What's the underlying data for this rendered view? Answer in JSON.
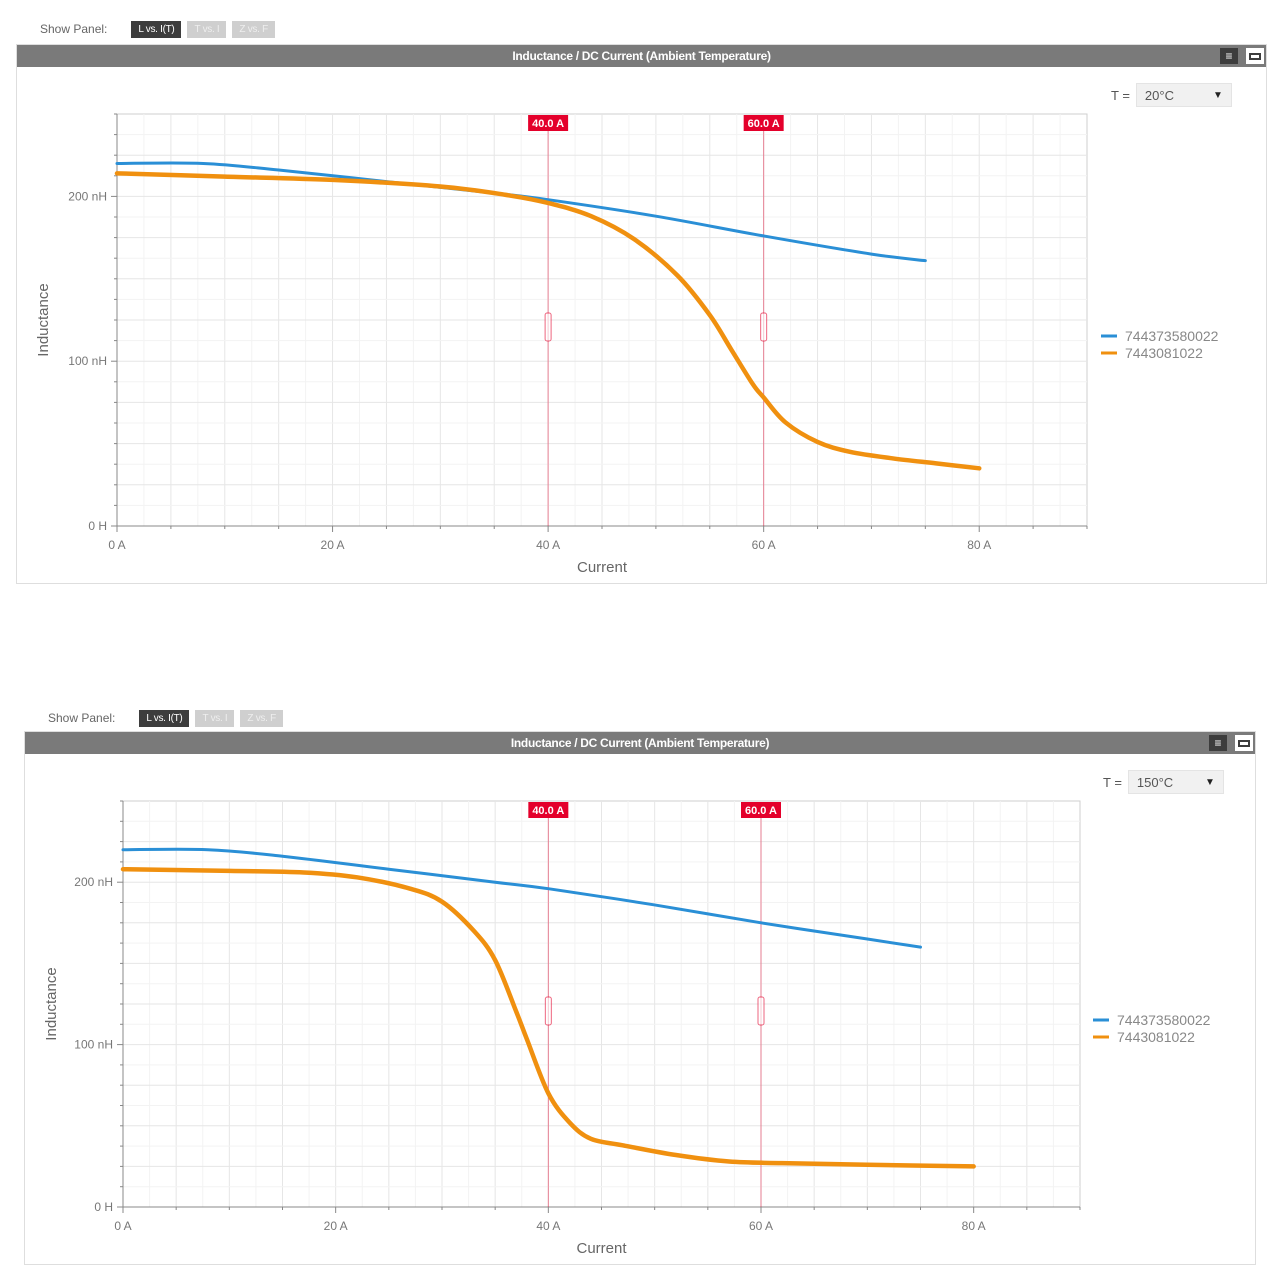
{
  "panels": [
    {
      "show_panel_label": "Show Panel:",
      "tabs": [
        {
          "label": "L vs. I(T)",
          "active": true
        },
        {
          "label": "T vs. I",
          "active": false
        },
        {
          "label": "Z vs. F",
          "active": false
        }
      ],
      "title": "Inductance / DC Current (Ambient Temperature)",
      "menu_icon": "hamburger-icon",
      "maximize_icon": "maximize-icon",
      "temperature_label": "T =",
      "temperature_value": "20°C"
    },
    {
      "show_panel_label": "Show Panel:",
      "tabs": [
        {
          "label": "L vs. I(T)",
          "active": true
        },
        {
          "label": "T vs. I",
          "active": false
        },
        {
          "label": "Z vs. F",
          "active": false
        }
      ],
      "title": "Inductance / DC Current (Ambient Temperature)",
      "menu_icon": "hamburger-icon",
      "maximize_icon": "maximize-icon",
      "temperature_label": "T =",
      "temperature_value": "150°C"
    }
  ],
  "colors": {
    "series_blue": "#2a8fd6",
    "series_orange": "#f0900f",
    "marker_red": "#e4002b",
    "grid": "#ececec"
  },
  "chart_data": [
    {
      "type": "line",
      "xlabel": "Current",
      "ylabel": "Inductance",
      "xlim": [
        0,
        90
      ],
      "ylim": [
        0,
        250
      ],
      "x_ticks": [
        {
          "v": 0,
          "label": "0 A"
        },
        {
          "v": 20,
          "label": "20 A"
        },
        {
          "v": 40,
          "label": "40 A"
        },
        {
          "v": 60,
          "label": "60 A"
        },
        {
          "v": 80,
          "label": "80 A"
        }
      ],
      "y_ticks": [
        {
          "v": 0,
          "label": "0 H"
        },
        {
          "v": 100,
          "label": "100 nH"
        },
        {
          "v": 200,
          "label": "200 nH"
        }
      ],
      "markers": [
        {
          "x": 40,
          "label": "40.0 A"
        },
        {
          "x": 60,
          "label": "60.0 A"
        }
      ],
      "legend_position": "right",
      "series": [
        {
          "name": "744373580022",
          "color": "#2a8fd6",
          "x": [
            0,
            8,
            15,
            25,
            35,
            40,
            50,
            60,
            70,
            75
          ],
          "y": [
            220,
            220,
            216,
            209,
            202,
            198,
            188,
            176,
            165,
            161
          ]
        },
        {
          "name": "7443081022",
          "color": "#f0900f",
          "x": [
            0,
            10,
            20,
            30,
            36,
            40,
            44,
            48,
            52,
            55,
            57,
            59,
            60,
            62,
            65,
            68,
            72,
            76,
            80
          ],
          "y": [
            214,
            212,
            210,
            206,
            201,
            196,
            188,
            174,
            152,
            128,
            107,
            86,
            78,
            63,
            51,
            45,
            41,
            38,
            35
          ]
        }
      ]
    },
    {
      "type": "line",
      "xlabel": "Current",
      "ylabel": "Inductance",
      "xlim": [
        0,
        90
      ],
      "ylim": [
        0,
        250
      ],
      "x_ticks": [
        {
          "v": 0,
          "label": "0 A"
        },
        {
          "v": 20,
          "label": "20 A"
        },
        {
          "v": 40,
          "label": "40 A"
        },
        {
          "v": 60,
          "label": "60 A"
        },
        {
          "v": 80,
          "label": "80 A"
        }
      ],
      "y_ticks": [
        {
          "v": 0,
          "label": "0 H"
        },
        {
          "v": 100,
          "label": "100 nH"
        },
        {
          "v": 200,
          "label": "200 nH"
        }
      ],
      "markers": [
        {
          "x": 40,
          "label": "40.0 A"
        },
        {
          "x": 60,
          "label": "60.0 A"
        }
      ],
      "legend_position": "right",
      "series": [
        {
          "name": "744373580022",
          "color": "#2a8fd6",
          "x": [
            0,
            8,
            15,
            25,
            35,
            40,
            50,
            60,
            70,
            75
          ],
          "y": [
            220,
            220,
            216,
            208,
            200,
            196,
            186,
            175,
            165,
            160
          ]
        },
        {
          "name": "7443081022",
          "color": "#f0900f",
          "x": [
            0,
            10,
            17,
            22,
            27,
            30,
            33,
            35,
            37,
            38,
            40,
            42,
            44,
            47,
            52,
            57,
            62,
            70,
            80
          ],
          "y": [
            208,
            207,
            206,
            203,
            196,
            188,
            170,
            152,
            120,
            103,
            70,
            52,
            42,
            38,
            32,
            28,
            27,
            26,
            25
          ]
        }
      ]
    }
  ]
}
